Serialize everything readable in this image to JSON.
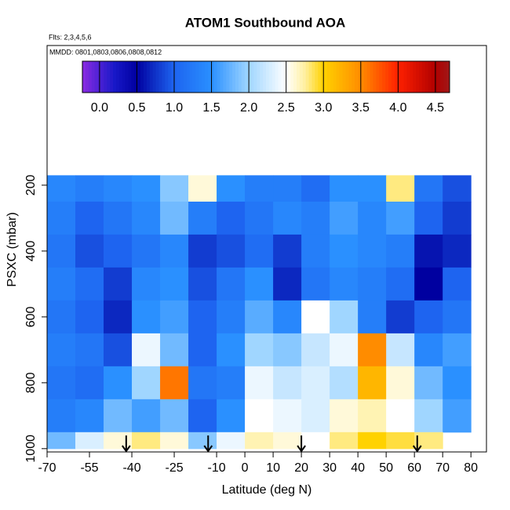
{
  "chart_data": {
    "type": "heatmap",
    "title": "ATOM1 Southbound AOA",
    "subtitle": "Flts: 2,3,4,5,6",
    "annotation": "MMDD: 0801,0803,0806,0808,0812",
    "x_label": "Latitude (deg N)",
    "y_label": "PSXC (mbar)",
    "xlim": [
      -70,
      85.5
    ],
    "xticks": [
      -70,
      -55,
      -40,
      -25,
      -10,
      0,
      10,
      20,
      30,
      40,
      50,
      60,
      70,
      80
    ],
    "ylim": [
      1010,
      -224
    ],
    "yticks": [
      200,
      400,
      600,
      800,
      1000
    ],
    "x_bins": [
      -70,
      -60,
      -50,
      -40,
      -30,
      -20,
      -10,
      0,
      10,
      20,
      30,
      40,
      50,
      60,
      70,
      80
    ],
    "y_bins": [
      170,
      250,
      350,
      450,
      550,
      650,
      750,
      850,
      950,
      1000
    ],
    "values": [
      [
        1.4,
        1.3,
        1.4,
        1.5,
        1.9,
        2.6,
        1.5,
        1.3,
        1.3,
        1.1,
        1.5,
        1.5,
        2.8,
        1.2,
        0.9
      ],
      [
        1.3,
        1.0,
        1.2,
        1.4,
        1.8,
        1.3,
        1.0,
        1.2,
        1.4,
        1.3,
        1.6,
        1.4,
        1.6,
        1.0,
        0.8
      ],
      [
        1.2,
        0.9,
        1.0,
        1.2,
        1.4,
        0.8,
        0.9,
        1.1,
        0.8,
        1.3,
        1.5,
        1.4,
        1.3,
        0.6,
        0.7
      ],
      [
        1.3,
        1.1,
        0.8,
        1.4,
        1.5,
        0.9,
        1.2,
        1.5,
        0.7,
        1.2,
        1.4,
        1.3,
        1.1,
        0.5,
        1.0
      ],
      [
        1.2,
        1.0,
        0.7,
        1.5,
        1.6,
        1.0,
        1.3,
        1.7,
        1.4,
        2.5,
        2.0,
        1.3,
        0.8,
        1.0,
        1.2
      ],
      [
        1.3,
        1.2,
        0.9,
        2.4,
        1.8,
        1.0,
        1.5,
        2.0,
        1.9,
        2.2,
        2.4,
        3.5,
        2.2,
        1.4,
        1.6
      ],
      [
        1.2,
        1.1,
        1.5,
        2.0,
        3.6,
        1.2,
        1.3,
        2.4,
        2.2,
        2.3,
        2.1,
        3.2,
        2.6,
        1.8,
        1.5
      ],
      [
        1.3,
        1.4,
        1.8,
        1.6,
        1.8,
        1.0,
        1.5,
        2.5,
        2.4,
        2.3,
        2.6,
        2.7,
        2.5,
        2.0,
        1.6
      ],
      [
        1.8,
        2.3,
        2.6,
        2.8,
        2.6,
        1.9,
        2.4,
        2.7,
        2.6,
        2.5,
        2.8,
        3.0,
        2.9,
        2.8,
        null
      ]
    ],
    "arrow_lats": [
      -42,
      -13,
      20,
      61
    ],
    "colorbar_lim": [
      -0.23,
      4.69
    ],
    "colorbar_ticks": [
      {
        "value": 0,
        "label": "0.0"
      },
      0.5,
      {
        "value": 1,
        "label": "1.0"
      },
      1.5,
      {
        "value": 2,
        "label": "2.0"
      },
      2.5,
      {
        "value": 3,
        "label": "3.0"
      },
      3.5,
      {
        "value": 4,
        "label": "4.0"
      },
      4.5
    ],
    "colormap": [
      {
        "value": -0.23,
        "color": "#8a2be2"
      },
      {
        "value": 0.2,
        "color": "#1818c8"
      },
      {
        "value": 0.5,
        "color": "#0000a0"
      },
      {
        "value": 1.0,
        "color": "#1e64f0"
      },
      {
        "value": 1.5,
        "color": "#2a90ff"
      },
      {
        "value": 2.0,
        "color": "#a0d6ff"
      },
      {
        "value": 2.5,
        "color": "#ffffff"
      },
      {
        "value": 2.75,
        "color": "#fff0a0"
      },
      {
        "value": 3.0,
        "color": "#ffd200"
      },
      {
        "value": 3.5,
        "color": "#ff8c00"
      },
      {
        "value": 4.0,
        "color": "#ff2000"
      },
      {
        "value": 4.5,
        "color": "#b00000"
      },
      {
        "value": 4.69,
        "color": "#a01818"
      }
    ]
  }
}
